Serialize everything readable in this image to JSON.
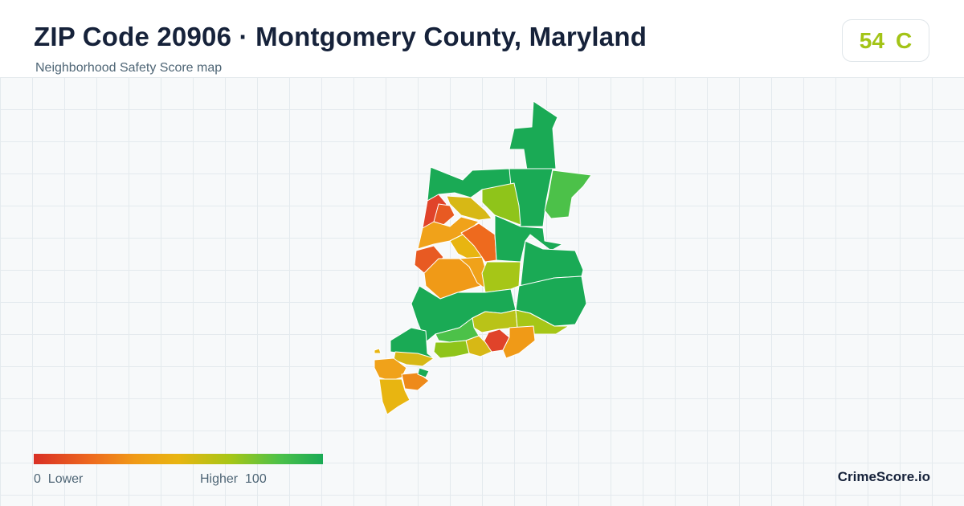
{
  "header": {
    "title": "ZIP Code 20906 · Montgomery County, Maryland",
    "subtitle": "Neighborhood Safety Score map"
  },
  "score": {
    "value": "54",
    "grade": "C",
    "color": "#a3c417"
  },
  "legend": {
    "low_value": "0",
    "low_label": "Lower",
    "high_label": "Higher",
    "high_value": "100",
    "colors": [
      "#d93025",
      "#ee6a1e",
      "#f09a17",
      "#e8b511",
      "#a6c617",
      "#4cc149",
      "#1aaa55"
    ]
  },
  "brand": "CrimeScore.io",
  "map": {
    "regions": [
      {
        "name": "region-north-tip",
        "color": "#1aaa55"
      },
      {
        "name": "region-north-a",
        "color": "#1aaa55"
      },
      {
        "name": "region-north-b",
        "color": "#1aaa55"
      },
      {
        "name": "region-northeast",
        "color": "#4cc149"
      },
      {
        "name": "region-north-lime",
        "color": "#8fc41a"
      },
      {
        "name": "region-nw-red",
        "color": "#e0432a"
      },
      {
        "name": "region-nw-red-b",
        "color": "#e85a22"
      },
      {
        "name": "region-nw-yellow",
        "color": "#d7b815"
      },
      {
        "name": "region-nw-orange",
        "color": "#f0a21a"
      },
      {
        "name": "region-west-orange",
        "color": "#e8b511"
      },
      {
        "name": "region-center-orange",
        "color": "#ee6a1e"
      },
      {
        "name": "region-west-red",
        "color": "#e85a22"
      },
      {
        "name": "region-mid-orange",
        "color": "#f09a17"
      },
      {
        "name": "region-mid-orange-b",
        "color": "#f0a21a"
      },
      {
        "name": "region-mid-lime",
        "color": "#a6c617"
      },
      {
        "name": "region-east-green",
        "color": "#1aaa55"
      },
      {
        "name": "region-east-green-b",
        "color": "#1aaa55"
      },
      {
        "name": "region-center-green",
        "color": "#1aaa55"
      },
      {
        "name": "region-west-green",
        "color": "#1aaa55"
      },
      {
        "name": "region-south-lime",
        "color": "#b9c318"
      },
      {
        "name": "region-south-lime-b",
        "color": "#a6c617"
      },
      {
        "name": "region-south-green",
        "color": "#4cc149"
      },
      {
        "name": "region-south-red",
        "color": "#e0432a"
      },
      {
        "name": "region-south-orange",
        "color": "#f09a17"
      },
      {
        "name": "region-south-yellow",
        "color": "#d7b815"
      },
      {
        "name": "region-south-lime-c",
        "color": "#8fc41a"
      },
      {
        "name": "region-sw-green",
        "color": "#1aaa55"
      },
      {
        "name": "region-sw-yellow",
        "color": "#d7b815"
      },
      {
        "name": "region-sw-orange",
        "color": "#f0a21a"
      },
      {
        "name": "region-sw-orange-b",
        "color": "#ee8a1a"
      },
      {
        "name": "region-sw-yellow-b",
        "color": "#e8b511"
      },
      {
        "name": "region-sw-green-b",
        "color": "#1aaa55"
      }
    ]
  }
}
